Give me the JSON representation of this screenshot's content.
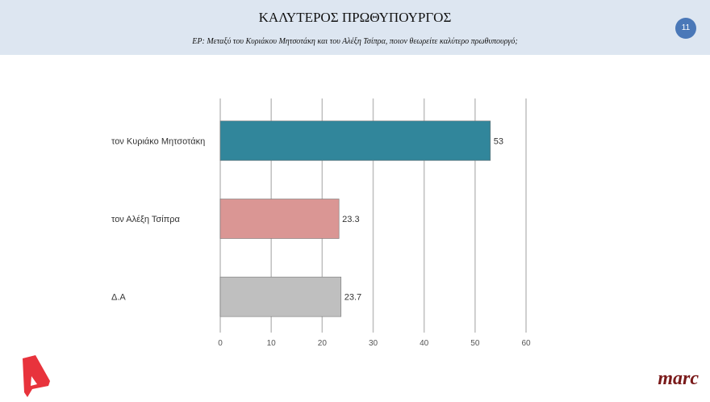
{
  "header": {
    "title": "ΚΑΛΥΤΕΡΟΣ ΠΡΩΘΥΠΟΥΡΓΟΣ",
    "question": "ΕΡ:  Μεταξύ του Κυριάκου Μητσοτάκη και του Αλέξη Τσίπρα, ποιον θεωρείτε καλύτερο πρωθυπουργό;",
    "page_number": "11"
  },
  "logos": {
    "left": "A",
    "right": "marc"
  },
  "chart_data": {
    "type": "bar",
    "orientation": "horizontal",
    "categories": [
      "τον Κυριάκο Μητσοτάκη",
      "τον Αλέξη Τσίπρα",
      "Δ.Α"
    ],
    "values": [
      53,
      23.3,
      23.7
    ],
    "value_labels": [
      "53",
      "23.3",
      "23.7"
    ],
    "colors": [
      "#31869b",
      "#da9694",
      "#bfbfbf"
    ],
    "xlim": [
      0,
      60
    ],
    "xticks": [
      "0",
      "10",
      "20",
      "30",
      "40",
      "50",
      "60"
    ],
    "grid": true
  }
}
